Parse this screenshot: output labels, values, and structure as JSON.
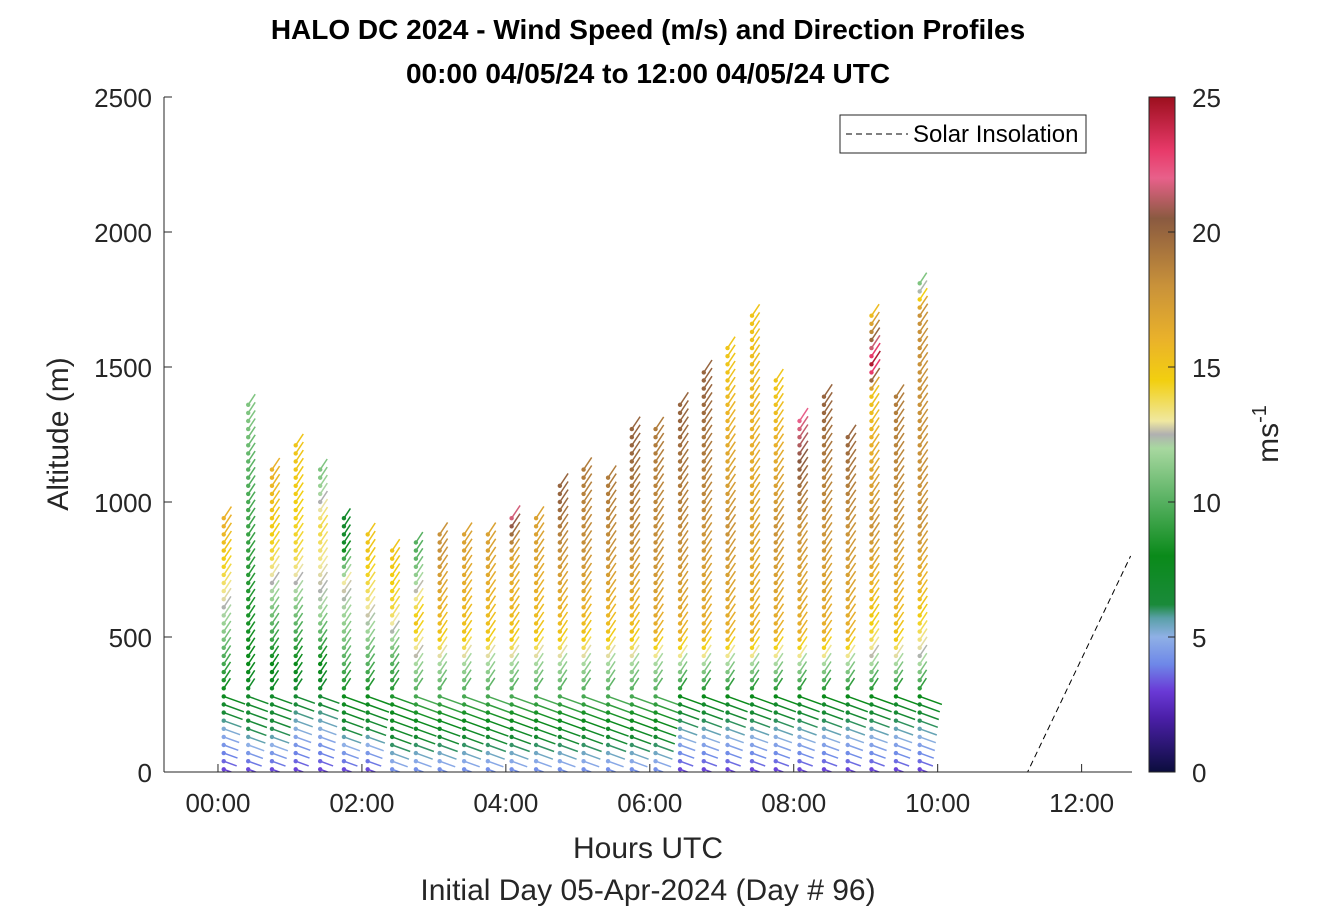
{
  "chart_data": {
    "type": "wind-profile",
    "title": "HALO DC 2024 - Wind Speed (m/s) and Direction Profiles",
    "subtitle": "00:00 04/05/24 to 12:00 04/05/24  UTC",
    "xlabel": "Hours UTC",
    "footer": "Initial Day 05-Apr-2024 (Day # 96)",
    "ylabel": "Altitude (m)",
    "xlim": [
      -0.75,
      12.7
    ],
    "ylim": [
      0,
      2500
    ],
    "x_ticks": [
      0,
      2,
      4,
      6,
      8,
      10,
      12
    ],
    "x_tick_labels": [
      "00:00",
      "02:00",
      "04:00",
      "06:00",
      "08:00",
      "10:00",
      "12:00"
    ],
    "y_ticks": [
      0,
      500,
      1000,
      1500,
      2000,
      2500
    ],
    "y_tick_labels": [
      "0",
      "500",
      "1000",
      "1500",
      "2000",
      "2500"
    ],
    "legend": {
      "label": "Solar Insolation",
      "position": "top-right"
    },
    "colorbar": {
      "label": "ms",
      "label_sup": "-1",
      "lim": [
        0,
        25
      ],
      "ticks": [
        0,
        5,
        10,
        15,
        20,
        25
      ],
      "tick_labels": [
        "0",
        "5",
        "10",
        "15",
        "20",
        "25"
      ],
      "stops": [
        {
          "v": 0,
          "c": "#0b0d3d"
        },
        {
          "v": 2,
          "c": "#4b1fa8"
        },
        {
          "v": 3,
          "c": "#6a3ad6"
        },
        {
          "v": 4,
          "c": "#6e88e8"
        },
        {
          "v": 5,
          "c": "#8fb0e6"
        },
        {
          "v": 5.7,
          "c": "#5aa0a8"
        },
        {
          "v": 6.2,
          "c": "#1a8a3a"
        },
        {
          "v": 8,
          "c": "#0a8a1a"
        },
        {
          "v": 10,
          "c": "#56b060"
        },
        {
          "v": 12,
          "c": "#a8d8a0"
        },
        {
          "v": 12.5,
          "c": "#b0b0b0"
        },
        {
          "v": 13,
          "c": "#f0e8a0"
        },
        {
          "v": 14.5,
          "c": "#f2cf10"
        },
        {
          "v": 16,
          "c": "#eab22a"
        },
        {
          "v": 18,
          "c": "#c9923a"
        },
        {
          "v": 20.5,
          "c": "#8a5a40"
        },
        {
          "v": 22,
          "c": "#e8608a"
        },
        {
          "v": 23,
          "c": "#e83a6a"
        },
        {
          "v": 25,
          "c": "#9c0f1e"
        }
      ]
    },
    "solar_insolation": [
      [
        -0.75,
        0
      ],
      [
        11.25,
        0
      ],
      [
        12.68,
        800
      ]
    ],
    "wind_profiles": [
      {
        "time": 0.08,
        "top": 960,
        "speed_by_alt": [
          [
            0,
            3
          ],
          [
            150,
            5
          ],
          [
            300,
            8
          ],
          [
            500,
            11
          ],
          [
            650,
            13
          ],
          [
            900,
            16
          ]
        ]
      },
      {
        "time": 0.42,
        "top": 1360,
        "speed_by_alt": [
          [
            0,
            3
          ],
          [
            150,
            6
          ],
          [
            400,
            8
          ],
          [
            800,
            9
          ],
          [
            1100,
            10
          ],
          [
            1300,
            11
          ]
        ]
      },
      {
        "time": 0.75,
        "top": 1130,
        "speed_by_alt": [
          [
            0,
            3
          ],
          [
            150,
            6
          ],
          [
            400,
            8
          ],
          [
            600,
            11
          ],
          [
            800,
            14
          ],
          [
            1100,
            16
          ]
        ]
      },
      {
        "time": 1.08,
        "top": 1210,
        "speed_by_alt": [
          [
            0,
            3
          ],
          [
            150,
            5
          ],
          [
            400,
            8
          ],
          [
            600,
            11
          ],
          [
            800,
            14
          ],
          [
            1150,
            15
          ]
        ]
      },
      {
        "time": 1.42,
        "top": 1130,
        "speed_by_alt": [
          [
            0,
            3
          ],
          [
            150,
            5
          ],
          [
            400,
            8
          ],
          [
            600,
            12
          ],
          [
            900,
            14
          ],
          [
            1100,
            11
          ]
        ]
      },
      {
        "time": 1.75,
        "top": 960,
        "speed_by_alt": [
          [
            0,
            3
          ],
          [
            150,
            6
          ],
          [
            400,
            10
          ],
          [
            700,
            13
          ],
          [
            850,
            7
          ]
        ]
      },
      {
        "time": 2.08,
        "top": 900,
        "speed_by_alt": [
          [
            0,
            3
          ],
          [
            150,
            6
          ],
          [
            400,
            10
          ],
          [
            600,
            13
          ],
          [
            800,
            15
          ]
        ]
      },
      {
        "time": 2.42,
        "top": 820,
        "speed_by_alt": [
          [
            0,
            4
          ],
          [
            150,
            7
          ],
          [
            400,
            10
          ],
          [
            600,
            14
          ],
          [
            800,
            15
          ]
        ]
      },
      {
        "time": 2.75,
        "top": 860,
        "speed_by_alt": [
          [
            0,
            4
          ],
          [
            150,
            7
          ],
          [
            400,
            12
          ],
          [
            550,
            15
          ],
          [
            800,
            10
          ]
        ]
      },
      {
        "time": 3.08,
        "top": 900,
        "speed_by_alt": [
          [
            0,
            4
          ],
          [
            150,
            7
          ],
          [
            400,
            12
          ],
          [
            500,
            15
          ],
          [
            800,
            18
          ]
        ]
      },
      {
        "time": 3.42,
        "top": 900,
        "speed_by_alt": [
          [
            0,
            4
          ],
          [
            150,
            7
          ],
          [
            400,
            12
          ],
          [
            500,
            15
          ],
          [
            800,
            17
          ]
        ]
      },
      {
        "time": 3.75,
        "top": 900,
        "speed_by_alt": [
          [
            0,
            4
          ],
          [
            150,
            7
          ],
          [
            400,
            12
          ],
          [
            500,
            15
          ],
          [
            800,
            17
          ]
        ]
      },
      {
        "time": 4.08,
        "top": 950,
        "speed_by_alt": [
          [
            0,
            4
          ],
          [
            150,
            7
          ],
          [
            400,
            12
          ],
          [
            500,
            15
          ],
          [
            800,
            17
          ],
          [
            950,
            22
          ]
        ]
      },
      {
        "time": 4.42,
        "top": 960,
        "speed_by_alt": [
          [
            0,
            4
          ],
          [
            150,
            7
          ],
          [
            400,
            12
          ],
          [
            500,
            15
          ],
          [
            800,
            17
          ]
        ]
      },
      {
        "time": 4.75,
        "top": 1060,
        "speed_by_alt": [
          [
            0,
            4
          ],
          [
            150,
            7
          ],
          [
            400,
            12
          ],
          [
            500,
            15
          ],
          [
            800,
            18
          ],
          [
            1000,
            20
          ]
        ]
      },
      {
        "time": 5.08,
        "top": 1120,
        "speed_by_alt": [
          [
            0,
            4
          ],
          [
            150,
            7
          ],
          [
            400,
            12
          ],
          [
            500,
            15
          ],
          [
            800,
            18
          ],
          [
            1100,
            19
          ]
        ]
      },
      {
        "time": 5.42,
        "top": 1090,
        "speed_by_alt": [
          [
            0,
            4
          ],
          [
            150,
            7
          ],
          [
            400,
            12
          ],
          [
            500,
            15
          ],
          [
            800,
            18
          ],
          [
            1050,
            19
          ]
        ]
      },
      {
        "time": 5.75,
        "top": 1290,
        "speed_by_alt": [
          [
            0,
            4
          ],
          [
            150,
            7
          ],
          [
            400,
            12
          ],
          [
            500,
            15
          ],
          [
            800,
            18
          ],
          [
            1200,
            20
          ]
        ]
      },
      {
        "time": 6.08,
        "top": 1290,
        "speed_by_alt": [
          [
            0,
            4
          ],
          [
            150,
            7
          ],
          [
            400,
            12
          ],
          [
            500,
            16
          ],
          [
            800,
            18
          ],
          [
            1200,
            19
          ]
        ]
      },
      {
        "time": 6.42,
        "top": 1360,
        "speed_by_alt": [
          [
            0,
            3
          ],
          [
            250,
            7
          ],
          [
            400,
            12
          ],
          [
            500,
            16
          ],
          [
            800,
            18
          ],
          [
            1300,
            20
          ]
        ]
      },
      {
        "time": 6.75,
        "top": 1500,
        "speed_by_alt": [
          [
            0,
            3
          ],
          [
            250,
            7
          ],
          [
            400,
            12
          ],
          [
            500,
            16
          ],
          [
            900,
            18
          ],
          [
            1400,
            20
          ]
        ]
      },
      {
        "time": 7.08,
        "top": 1570,
        "speed_by_alt": [
          [
            0,
            3
          ],
          [
            250,
            7
          ],
          [
            400,
            12
          ],
          [
            500,
            16
          ],
          [
            900,
            18
          ],
          [
            1500,
            15
          ]
        ]
      },
      {
        "time": 7.42,
        "top": 1700,
        "speed_by_alt": [
          [
            0,
            3
          ],
          [
            250,
            7
          ],
          [
            400,
            12
          ],
          [
            500,
            16
          ],
          [
            900,
            17
          ],
          [
            1700,
            15
          ]
        ]
      },
      {
        "time": 7.75,
        "top": 1450,
        "speed_by_alt": [
          [
            0,
            3
          ],
          [
            250,
            7
          ],
          [
            400,
            12
          ],
          [
            500,
            16
          ],
          [
            900,
            18
          ],
          [
            1400,
            15
          ]
        ]
      },
      {
        "time": 8.08,
        "top": 1320,
        "speed_by_alt": [
          [
            0,
            3
          ],
          [
            250,
            7
          ],
          [
            400,
            12
          ],
          [
            500,
            16
          ],
          [
            900,
            18
          ],
          [
            1300,
            22
          ]
        ]
      },
      {
        "time": 8.42,
        "top": 1410,
        "speed_by_alt": [
          [
            0,
            3
          ],
          [
            250,
            7
          ],
          [
            400,
            12
          ],
          [
            500,
            16
          ],
          [
            900,
            18
          ],
          [
            1350,
            20
          ]
        ]
      },
      {
        "time": 8.75,
        "top": 1260,
        "speed_by_alt": [
          [
            0,
            3
          ],
          [
            250,
            7
          ],
          [
            400,
            12
          ],
          [
            500,
            16
          ],
          [
            900,
            18
          ],
          [
            1250,
            20
          ]
        ]
      },
      {
        "time": 9.08,
        "top": 1700,
        "speed_by_alt": [
          [
            0,
            3
          ],
          [
            250,
            7
          ],
          [
            400,
            12
          ],
          [
            500,
            14
          ],
          [
            900,
            18
          ],
          [
            1400,
            15
          ],
          [
            1500,
            25
          ],
          [
            1700,
            15
          ]
        ]
      },
      {
        "time": 9.42,
        "top": 1410,
        "speed_by_alt": [
          [
            0,
            3
          ],
          [
            250,
            7
          ],
          [
            400,
            12
          ],
          [
            500,
            15
          ],
          [
            900,
            18
          ],
          [
            1400,
            19
          ]
        ]
      },
      {
        "time": 9.75,
        "top": 1830,
        "speed_by_alt": [
          [
            0,
            3
          ],
          [
            250,
            7
          ],
          [
            400,
            12
          ],
          [
            600,
            15
          ],
          [
            900,
            18
          ],
          [
            1700,
            18
          ],
          [
            1800,
            11
          ]
        ]
      }
    ]
  }
}
